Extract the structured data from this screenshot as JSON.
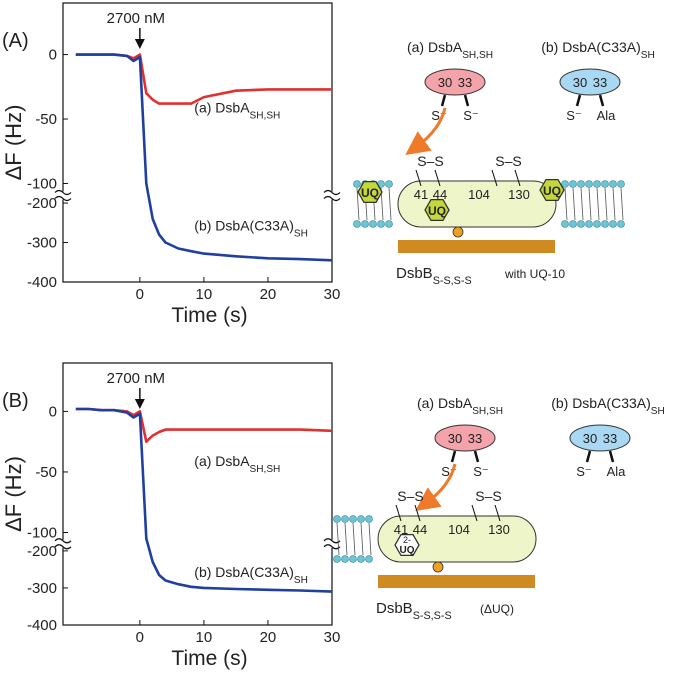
{
  "chart_data": [
    {
      "type": "line",
      "panel_label": "(A)",
      "xlabel": "Time (s)",
      "ylabel": "ΔF (Hz)",
      "annotation": "2700 nM",
      "xlim": [
        -12,
        30
      ],
      "xticks": [
        0,
        10,
        20,
        30
      ],
      "ylim": [
        -400,
        40
      ],
      "ybreak": [
        -105,
        -195
      ],
      "yticks": [
        0,
        -50,
        -100,
        -200,
        -300,
        -400
      ],
      "x": [
        -10,
        -8,
        -6,
        -4,
        -2,
        -1,
        0,
        1,
        2,
        3,
        4,
        6,
        8,
        10,
        15,
        20,
        25,
        30
      ],
      "series": [
        {
          "name": "(a) DsbA",
          "name_sub": "SH,SH",
          "color": "#e03030",
          "values": [
            0,
            0,
            0,
            0,
            -1,
            -3,
            0,
            -30,
            -35,
            -38,
            -38,
            -38,
            -38,
            -33,
            -28,
            -27,
            -27,
            -27
          ]
        },
        {
          "name": "(b) DsbA(C33A)",
          "name_sub": "SH",
          "color": "#2040a0",
          "values": [
            0,
            0,
            0,
            0,
            -1,
            -5,
            -2,
            -100,
            -240,
            -280,
            -300,
            -315,
            -322,
            -328,
            -335,
            -340,
            -342,
            -345
          ]
        }
      ]
    },
    {
      "type": "line",
      "panel_label": "(B)",
      "xlabel": "Time (s)",
      "ylabel": "ΔF (Hz)",
      "annotation": "2700 nM",
      "xlim": [
        -12,
        30
      ],
      "xticks": [
        0,
        10,
        20,
        30
      ],
      "ylim": [
        -400,
        40
      ],
      "ybreak": [
        -105,
        -195
      ],
      "yticks": [
        0,
        -50,
        -100,
        -200,
        -300,
        -400
      ],
      "x": [
        -10,
        -8,
        -6,
        -4,
        -2,
        -1,
        0,
        1,
        2,
        3,
        4,
        6,
        8,
        10,
        15,
        20,
        25,
        30
      ],
      "series": [
        {
          "name": "(a) DsbA",
          "name_sub": "SH,SH",
          "color": "#e03030",
          "values": [
            2,
            2,
            1,
            1,
            0,
            -3,
            0,
            -25,
            -20,
            -17,
            -15,
            -15,
            -15,
            -15,
            -15,
            -15,
            -15,
            -16
          ]
        },
        {
          "name": "(b) DsbA(C33A)",
          "name_sub": "SH",
          "color": "#2040a0",
          "values": [
            2,
            2,
            1,
            1,
            -1,
            -5,
            -2,
            -105,
            -230,
            -265,
            -280,
            -290,
            -297,
            -300,
            -303,
            -305,
            -307,
            -310
          ]
        }
      ]
    }
  ],
  "diagrams": [
    {
      "proteins": [
        {
          "label": "(a) DsbA",
          "sub": "SH,SH",
          "color": "#f4a3ab",
          "residues": [
            "30",
            "33"
          ],
          "side_chains": [
            "S⁻",
            "S⁻"
          ]
        },
        {
          "label": "(b) DsbA(C33A)",
          "sub": "SH",
          "color": "#a9d9f2",
          "residues": [
            "30",
            "33"
          ],
          "side_chains": [
            "S⁻",
            "Ala"
          ]
        }
      ],
      "bridges": [
        "S–S",
        "S–S"
      ],
      "residues": [
        "41",
        "44",
        "104",
        "130"
      ],
      "quinones": [
        "UQ",
        "UQ",
        "UQ"
      ],
      "caption": "DsbB",
      "caption_sub": "S-S,S-S",
      "caption_suffix": "with UQ-10"
    },
    {
      "proteins": [
        {
          "label": "(a) DsbA",
          "sub": "SH,SH",
          "color": "#f4a3ab",
          "residues": [
            "30",
            "33"
          ],
          "side_chains": [
            "S⁻",
            "S⁻"
          ]
        },
        {
          "label": "(b) DsbA(C33A)",
          "sub": "SH",
          "color": "#a9d9f2",
          "residues": [
            "30",
            "33"
          ],
          "side_chains": [
            "S⁻",
            "Ala"
          ]
        }
      ],
      "bridges": [
        "S–S",
        "S–S"
      ],
      "residues": [
        "41",
        "44",
        "104",
        "130"
      ],
      "quinones": [
        "UQ"
      ],
      "quinone_charge": "2-",
      "caption": "DsbB",
      "caption_sub": "S-S,S-S",
      "caption_suffix": "(ΔUQ)"
    }
  ]
}
